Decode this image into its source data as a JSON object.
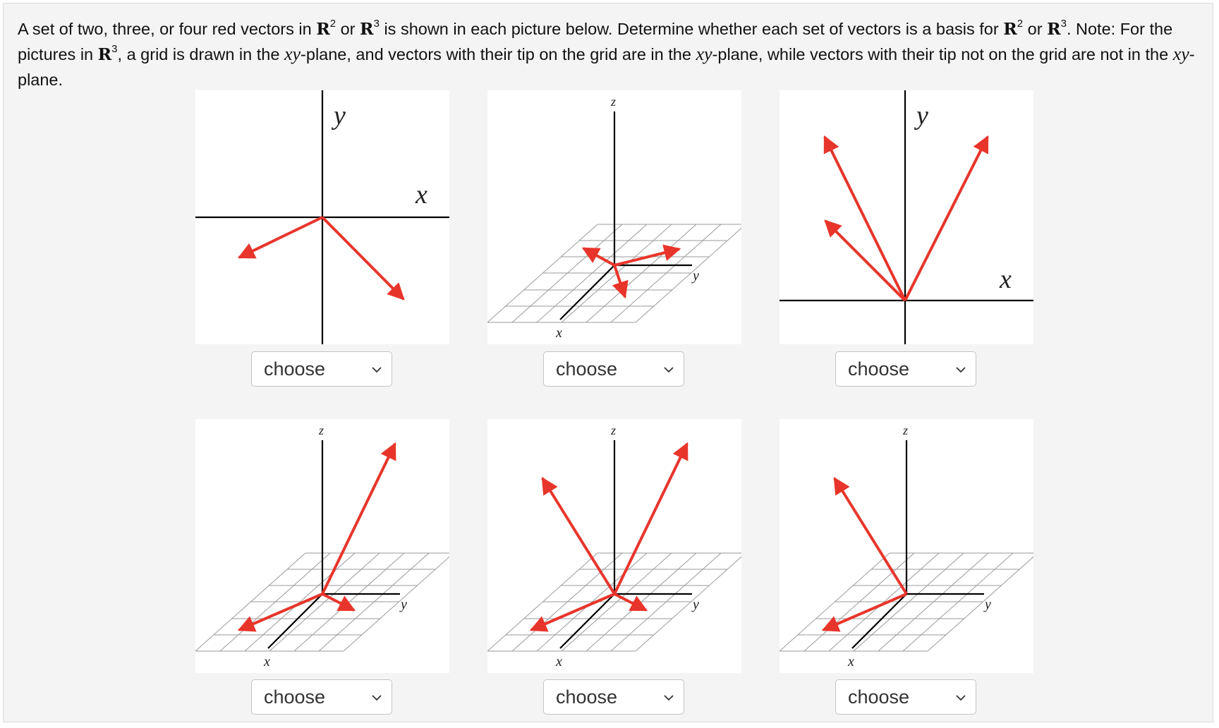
{
  "question": {
    "p1": "A set of two, three, or four red vectors in ",
    "r2a": "R",
    "exp2a": "2",
    "p2": " or ",
    "r3a": "R",
    "exp3a": "3",
    "p3": " is shown in each picture below. Determine whether each set of vectors is a basis for ",
    "r2b": "R",
    "exp2b": "2",
    "p4": " or ",
    "r3b": "R",
    "exp3b": "3",
    "p5": ". Note: For the pictures in ",
    "r3c": "R",
    "exp3c": "3",
    "p6": ", a grid is drawn in the ",
    "xy1": "xy",
    "p7": "-plane, and vectors with their tip on the grid are in the ",
    "xy2": "xy",
    "p8": "-plane, while vectors with their tip not on the grid are not in the ",
    "xy3": "xy",
    "p9": "-plane."
  },
  "axis_labels": {
    "x": "x",
    "y": "y",
    "z": "z"
  },
  "vector_color": "#e8352b",
  "dropdowns": [
    {
      "value": "choose"
    },
    {
      "value": "choose"
    },
    {
      "value": "choose"
    },
    {
      "value": "choose"
    },
    {
      "value": "choose"
    },
    {
      "value": "choose"
    }
  ],
  "icons": {
    "dropdown": "chevron-down-icon"
  }
}
